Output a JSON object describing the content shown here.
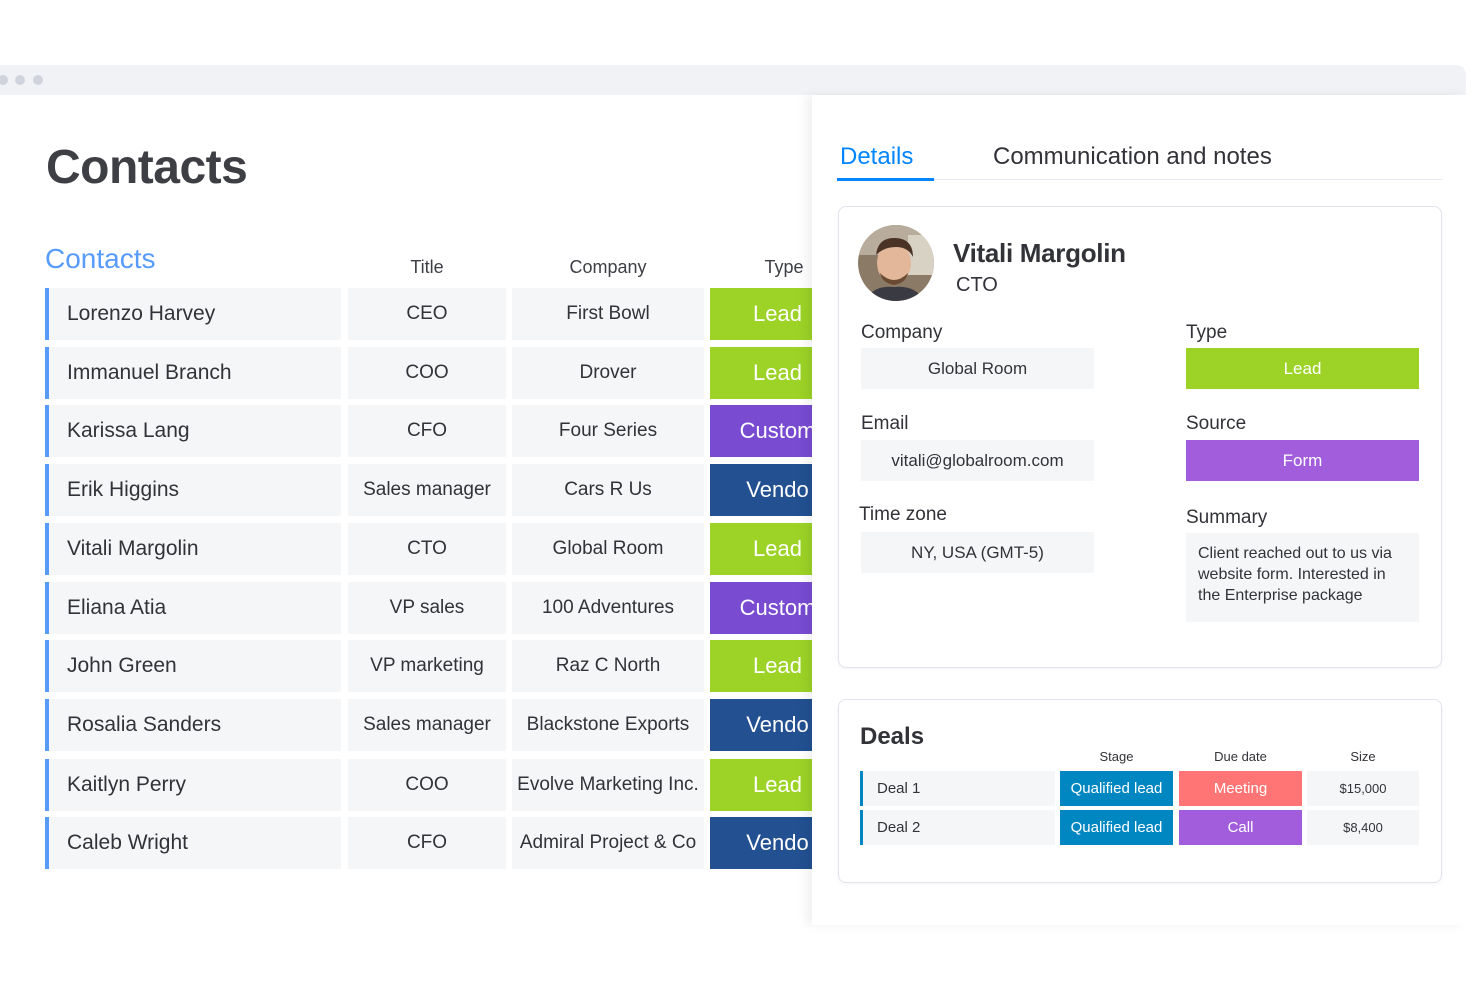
{
  "page_title": "Contacts",
  "contacts_group": {
    "title": "Contacts",
    "columns": {
      "title": "Title",
      "company": "Company",
      "type": "Type"
    },
    "rows": [
      {
        "name": "Lorenzo Harvey",
        "title": "CEO",
        "company": "First Bowl",
        "type": "Lead",
        "type_color": "#9cd326"
      },
      {
        "name": "Immanuel Branch",
        "title": "COO",
        "company": "Drover",
        "type": "Lead",
        "type_color": "#9cd326"
      },
      {
        "name": "Karissa Lang",
        "title": "CFO",
        "company": "Four Series",
        "type": "Custom",
        "type_color": "#784bd1"
      },
      {
        "name": "Erik Higgins",
        "title": "Sales manager",
        "company": "Cars R Us",
        "type": "Vendo",
        "type_color": "#225091"
      },
      {
        "name": "Vitali Margolin",
        "title": "CTO",
        "company": "Global Room",
        "type": "Lead",
        "type_color": "#9cd326"
      },
      {
        "name": "Eliana Atia",
        "title": "VP sales",
        "company": "100 Adventures",
        "type": "Custom",
        "type_color": "#784bd1"
      },
      {
        "name": "John Green",
        "title": "VP marketing",
        "company": "Raz C North",
        "type": "Lead",
        "type_color": "#9cd326"
      },
      {
        "name": "Rosalia Sanders",
        "title": "Sales manager",
        "company": "Blackstone Exports",
        "type": "Vendo",
        "type_color": "#225091"
      },
      {
        "name": "Kaitlyn Perry",
        "title": "COO",
        "company": "Evolve Marketing Inc.",
        "type": "Lead",
        "type_color": "#9cd326"
      },
      {
        "name": "Caleb Wright",
        "title": "CFO",
        "company": "Admiral Project & Co",
        "type": "Vendo",
        "type_color": "#225091"
      }
    ]
  },
  "panel": {
    "tabs": {
      "details": "Details",
      "communication": "Communication and notes"
    },
    "contact": {
      "name": "Vitali Margolin",
      "role": "CTO"
    },
    "fields": {
      "company_label": "Company",
      "company_value": "Global Room",
      "type_label": "Type",
      "type_value": "Lead",
      "type_color": "#9cd326",
      "email_label": "Email",
      "email_value": "vitali@globalroom.com",
      "source_label": "Source",
      "source_value": "Form",
      "source_color": "#a25ddc",
      "timezone_label": "Time zone",
      "timezone_value": "NY, USA (GMT-5)",
      "summary_label": "Summary",
      "summary_value": "Client reached out to us via website form. Interested in the Enterprise package"
    },
    "deals": {
      "title": "Deals",
      "columns": {
        "stage": "Stage",
        "due": "Due date",
        "size": "Size"
      },
      "rows": [
        {
          "name": "Deal 1",
          "stage": "Qualified lead",
          "stage_color": "#0086c0",
          "due": "Meeting",
          "due_color": "#ff7575",
          "size": "$15,000"
        },
        {
          "name": "Deal 2",
          "stage": "Qualified lead",
          "stage_color": "#0086c0",
          "due": "Call",
          "due_color": "#a25ddc",
          "size": "$8,400"
        }
      ]
    }
  },
  "colors": {
    "accent": "#579bfc",
    "tab_active": "#0085ff"
  }
}
